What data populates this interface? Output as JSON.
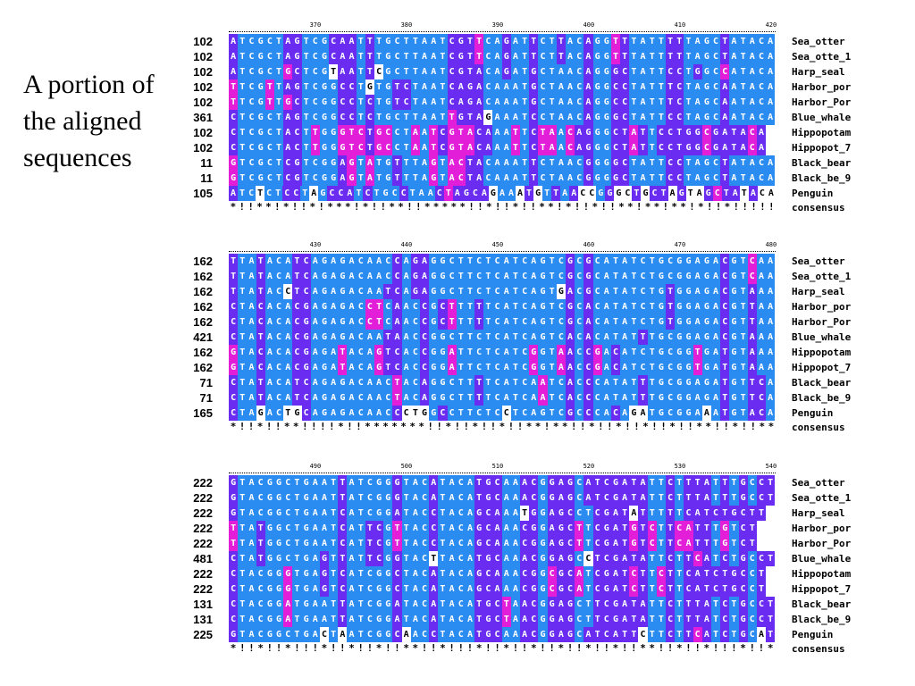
{
  "caption": "A portion of the aligned sequences",
  "colors": {
    "match": "#2a8cf0",
    "partial": "#6a2cf0",
    "mismatch": "#e21ed8",
    "unique": "#ffffff"
  },
  "blocks": [
    {
      "ruler": [
        "370",
        "380",
        "390",
        "400",
        "410",
        "420"
      ],
      "rows": [
        {
          "num": "102",
          "name": "Sea_otter",
          "seq": "ATCGCTAGTCGCAATTTGCTTAATCGTTCAGATTCTTACAGGTTTATTTTTAGCTATACA"
        },
        {
          "num": "102",
          "name": "Sea_otte_1",
          "seq": "ATCGCTAGTCGCAATTTGCTTAATCGTTCAGATTCTTACAGGTTTATTTTTAGCTATACA"
        },
        {
          "num": "102",
          "name": "Harp_seal",
          "seq": "ATCGCTGCTCGTAATTCGCTTAATCGTACAGATGCTAACAGGGCTATTCCTGGCCATACA"
        },
        {
          "num": "102",
          "name": "Harbor_por",
          "seq": "TTCGTTAGTCGGCCTGTGTCTAATCAGACAAATGCTAACAGGCCTATTTCTAGCAATACA"
        },
        {
          "num": "102",
          "name": "Harbor_Por",
          "seq": "TTCGTTGCTCGGCCTCTGTCTAATCAGACAAATGCTAACAGGCCTATTTCTAGCAATACA"
        },
        {
          "num": "361",
          "name": "Blue_whale",
          "seq": "CTCGCTAGTCGGCCTCTGCTTAATTGTAGAAATCCTAACAGGGCTATTCCTAGCAATACA"
        },
        {
          "num": "102",
          "name": "Hippopotam",
          "seq": "CTCGCTACTTGGGTCTGCCTAATCGTACAAATTCTAACAGGGCTATTCCTGGCGATACA"
        },
        {
          "num": "102",
          "name": "Hippopot_7",
          "seq": "CTCGCTACTTGGGTCTGCCTAATCGTACAAATTCTAACAGGGCTATTCCTGGCGATACA"
        },
        {
          "num": "11",
          "name": "Black_bear",
          "seq": "GTCGCTCGTCGGAGTATGTTTAGTACTACAAATTCTAACGGGGCTATTCCTAGCTATACA"
        },
        {
          "num": "11",
          "name": "Black_be_9",
          "seq": "GTCGCTCGTCGGAGTATGTTTAGTACTACAAATTCTAACGGGGCTATTCCTAGCTATACA"
        },
        {
          "num": "105",
          "name": "Penguin",
          "seq": "ATCTCTCCTAGCCATCTGCCTAACTAGCAGAAATGTTAACCGGGCTGCTAGTAGCTATACA"
        }
      ],
      "consensus_name": "consensus",
      "consensus": "*!!**!*!!*!***!*!!**!!*****!!*!!*!!**!*!!*!!**!**!**!*!!*!!!!!"
    },
    {
      "ruler": [
        "430",
        "440",
        "450",
        "460",
        "470",
        "480"
      ],
      "rows": [
        {
          "num": "162",
          "name": "Sea_otter",
          "seq": "TTATACATCAGAGACAACCAGAGGCTTCTCATCAGTCGCGCATATCTGCGGAGACGTCAA"
        },
        {
          "num": "162",
          "name": "Sea_otte_1",
          "seq": "TTATACATCAGAGACAACCAGAGGCTTCTCATCAGTCGCGCATATCTGCGGAGACGTCAA"
        },
        {
          "num": "162",
          "name": "Harp_seal",
          "seq": "TTATACCTCAGAGACAATCAGAGGCTTCTCATCAGTGACGCATATCTGTGGAGACGTAAA"
        },
        {
          "num": "162",
          "name": "Harbor_por",
          "seq": "CTACACACGAGAGACCTCAACCGCTTTTTCATCAGTCGCACATATCTGTGGAGACGTTAA"
        },
        {
          "num": "162",
          "name": "Harbor_Por",
          "seq": "CTACACACGAGAGACCTCAACCGCTTTTTCATCAGTCGCACATATCTGTGGAGACGTTAA"
        },
        {
          "num": "421",
          "name": "Blue_whale",
          "seq": "CTATACACGAGAGACAATAACCGGCTTCTCATCAGTCACACATATTTGCGGAGACGTAAA"
        },
        {
          "num": "162",
          "name": "Hippopotam",
          "seq": "GTACACACGAGATACAGTCACCGGATTCTCATCGGTAACCGACATCTGCGGTGATGTAAA"
        },
        {
          "num": "162",
          "name": "Hippopot_7",
          "seq": "GTACACACGAGATACAGTCACCGGATTCTCATCGGTAACCGACATCTGCGGTGATGTAAA"
        },
        {
          "num": "71",
          "name": "Black_bear",
          "seq": "CTATACATCAGAGACAACTACAGGCTTTTCATCAATCACCCATATTTGCGGAGATGTTCA"
        },
        {
          "num": "71",
          "name": "Black_be_9",
          "seq": "CTATACATCAGAGACAACTACAGGCTTTTCATCAATCACCCATATTTGCGGAGATGTTCA"
        },
        {
          "num": "165",
          "name": "Penguin",
          "seq": "CTAGACTGCAGAGACAACCCTGGCCTTCTCCTCAGTCGCCCACAGATGCGGAAATGTACA"
        }
      ],
      "consensus_name": "consensus",
      "consensus": "*!!*!!**!!!!*!!*******!!*!!*!!*!!**!**!!*!!*!!*!!*!!**!!*!!**"
    },
    {
      "ruler": [
        "490",
        "500",
        "510",
        "520",
        "530",
        "540"
      ],
      "rows": [
        {
          "num": "222",
          "name": "Sea_otter",
          "seq": "GTACGGCTGAATTATCGGGTACATACATGCAAACGGAGCATCGATATTCTTTATTTGCCT"
        },
        {
          "num": "222",
          "name": "Sea_otte_1",
          "seq": "GTACGGCTGAATTATCGGGTACATACATGCAAACGGAGCATCGATATTCTTTATTTGCCT"
        },
        {
          "num": "222",
          "name": "Harp_seal",
          "seq": "GTACGGCTGAATCATCGGATACCTACAGCAAATGGAGCCTCGATATTTTTCATCTGCTT"
        },
        {
          "num": "222",
          "name": "Harbor_por",
          "seq": "TTATGGCTGAATCATTCGTTACCTACAGCAAACGGAGCTTCGATGTCTTCATTTGTCT"
        },
        {
          "num": "222",
          "name": "Harbor_Por",
          "seq": "TTATGGCTGAATCATTCGTTACCTACAGCAAACGGAGCTTCGATGTCTTCATTTGTCT"
        },
        {
          "num": "481",
          "name": "Blue_whale",
          "seq": "CTATGGCTGAGTTATTCGGTACTTACATGCAAACGGAGCCTCGATATTCTTCATCTGCCT"
        },
        {
          "num": "222",
          "name": "Hippopotam",
          "seq": "CTACGGGTGAGTCATCGGCTACATACAGCAAACGGCGCATCGATCTTCTTCATCTGCCT"
        },
        {
          "num": "222",
          "name": "Hippopot_7",
          "seq": "CTACGGGTGAGTCATCGGCTACATACAGCAAACGGCGCATCGATCTTCTTCATCTGCCT"
        },
        {
          "num": "131",
          "name": "Black_bear",
          "seq": "CTACGGATGAATTATCGGATACATACATGCTAACGGAGCTTCGATATTCTTTATCTGCCT"
        },
        {
          "num": "131",
          "name": "Black_be_9",
          "seq": "CTACGGATGAATTATCGGATACATACATGCTAACGGAGCTTCGATATTCTTTATCTGCCT"
        },
        {
          "num": "225",
          "name": "Penguin",
          "seq": "GTACGGCTGACTAATCGGCAACCTACATGCAAACGGAGCATCATTCTTCTTCATCTGCAT"
        }
      ],
      "consensus_name": "consensus",
      "consensus": "*!!*!!*!!!*!!*!!*!!**!!*!!!*!!*!!*!!*!!*!!*!!**!!*!!*!!!*!!*"
    }
  ]
}
